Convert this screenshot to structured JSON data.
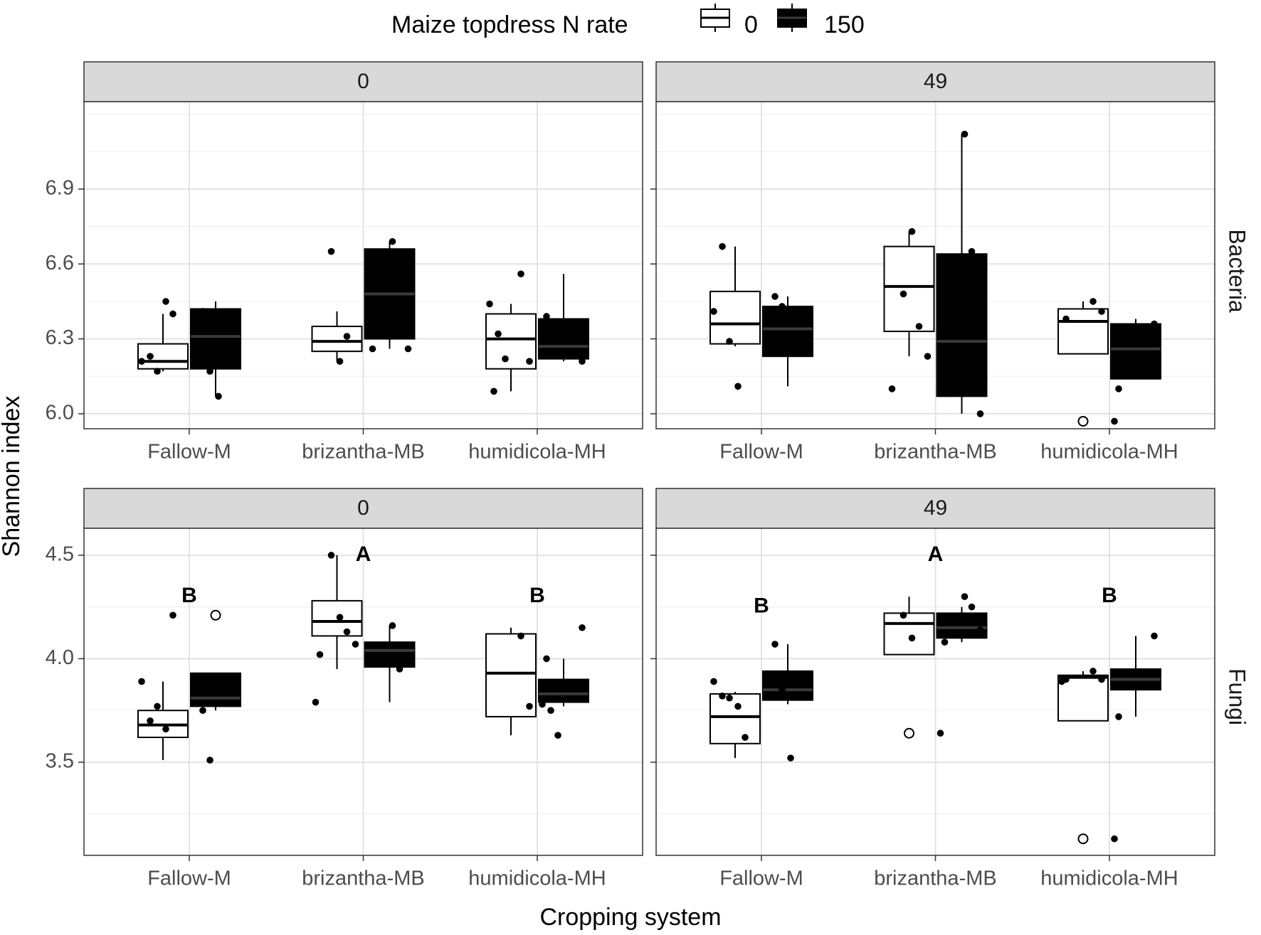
{
  "chart_data": {
    "type": "boxplot",
    "legend": {
      "title": "Maize topdress N rate",
      "placement": "top",
      "entries": [
        {
          "label": "0",
          "fill": "#ffffff"
        },
        {
          "label": "150",
          "fill": "#000000"
        }
      ]
    },
    "xlabel": "Cropping system",
    "ylabel": "Shannon index",
    "categories": [
      "Fallow-M",
      "brizantha-MB",
      "humidicola-MH"
    ],
    "column_strips": [
      "0",
      "0",
      "49",
      "49"
    ],
    "colors": {
      "strip_fill": "#d9d9d9",
      "grid": "#ebebeb",
      "box_0": "#ffffff",
      "box_150": "#000000",
      "median_150": "#3a3a3a"
    },
    "panels": [
      {
        "row": "Bacteria",
        "strip": "0",
        "col": 0,
        "rowIndex": 0,
        "ylim": [
          5.94,
          7.25
        ],
        "yticks": [
          6.0,
          6.3,
          6.6,
          6.9
        ],
        "yticklabels": [
          "6.0",
          "6.3",
          "6.6",
          "6.9"
        ],
        "letters": [],
        "boxes": [
          {
            "category": "Fallow-M",
            "n_rate": "0",
            "q1": 6.18,
            "median": 6.21,
            "q3": 6.28,
            "lower": 6.17,
            "upper": 6.4,
            "points": [
              6.21,
              6.23,
              6.17,
              6.45,
              6.4
            ],
            "outliers": []
          },
          {
            "category": "Fallow-M",
            "n_rate": "150",
            "q1": 6.18,
            "median": 6.31,
            "q3": 6.42,
            "lower": 6.07,
            "upper": 6.45,
            "points": [
              6.41,
              6.17,
              6.07
            ],
            "outliers": []
          },
          {
            "category": "brizantha-MB",
            "n_rate": "0",
            "q1": 6.25,
            "median": 6.29,
            "q3": 6.35,
            "lower": 6.21,
            "upper": 6.41,
            "points": [
              6.65,
              6.21,
              6.31
            ],
            "outliers": []
          },
          {
            "category": "brizantha-MB",
            "n_rate": "150",
            "q1": 6.3,
            "median": 6.48,
            "q3": 6.66,
            "lower": 6.26,
            "upper": 6.69,
            "points": [
              6.69,
              6.41,
              6.26,
              6.26
            ],
            "outliers": []
          },
          {
            "category": "humidicola-MH",
            "n_rate": "0",
            "q1": 6.18,
            "median": 6.3,
            "q3": 6.4,
            "lower": 6.09,
            "upper": 6.44,
            "points": [
              6.56,
              6.21,
              6.09,
              6.44,
              6.32,
              6.22
            ],
            "outliers": []
          },
          {
            "category": "humidicola-MH",
            "n_rate": "150",
            "q1": 6.22,
            "median": 6.27,
            "q3": 6.38,
            "lower": 6.21,
            "upper": 6.56,
            "points": [
              6.21,
              6.39
            ],
            "outliers": []
          }
        ]
      },
      {
        "row": "Bacteria",
        "strip": "49",
        "col": 1,
        "rowIndex": 0,
        "ylim": [
          5.94,
          7.25
        ],
        "yticks": [
          6.0,
          6.3,
          6.6,
          6.9
        ],
        "yticklabels": [
          "6.0",
          "6.3",
          "6.6",
          "6.9"
        ],
        "letters": [],
        "boxes": [
          {
            "category": "Fallow-M",
            "n_rate": "0",
            "q1": 6.28,
            "median": 6.36,
            "q3": 6.49,
            "lower": 6.27,
            "upper": 6.67,
            "points": [
              6.41,
              6.67,
              6.29,
              6.11
            ],
            "outliers": []
          },
          {
            "category": "Fallow-M",
            "n_rate": "150",
            "q1": 6.23,
            "median": 6.34,
            "q3": 6.43,
            "lower": 6.11,
            "upper": 6.47,
            "points": [
              6.47,
              6.43,
              6.27
            ],
            "outliers": []
          },
          {
            "category": "brizantha-MB",
            "n_rate": "0",
            "q1": 6.33,
            "median": 6.51,
            "q3": 6.67,
            "lower": 6.23,
            "upper": 6.73,
            "points": [
              6.48,
              6.73,
              6.35,
              6.23,
              6.1
            ],
            "outliers": []
          },
          {
            "category": "brizantha-MB",
            "n_rate": "150",
            "q1": 6.07,
            "median": 6.29,
            "q3": 6.64,
            "lower": 6.0,
            "upper": 7.12,
            "points": [
              7.12,
              6.65,
              6.0
            ],
            "outliers": []
          },
          {
            "category": "humidicola-MH",
            "n_rate": "0",
            "q1": 6.24,
            "median": 6.37,
            "q3": 6.42,
            "lower": 6.24,
            "upper": 6.45,
            "points": [
              6.45,
              6.41,
              6.38
            ],
            "outliers": [
              5.97
            ]
          },
          {
            "category": "humidicola-MH",
            "n_rate": "150",
            "q1": 6.14,
            "median": 6.26,
            "q3": 6.36,
            "lower": 6.14,
            "upper": 6.38,
            "points": [
              6.36,
              6.1,
              5.97
            ],
            "outliers": []
          }
        ]
      },
      {
        "row": "Fungi",
        "strip": "0",
        "col": 0,
        "rowIndex": 1,
        "ylim": [
          3.05,
          4.63
        ],
        "yticks": [
          3.5,
          4.0,
          4.5
        ],
        "yticklabels": [
          "3.5",
          "4.0",
          "4.5"
        ],
        "letters": [
          {
            "category": "Fallow-M",
            "letter": "B",
            "y": 4.3
          },
          {
            "category": "brizantha-MB",
            "letter": "A",
            "y": 4.5
          },
          {
            "category": "humidicola-MH",
            "letter": "B",
            "y": 4.3
          }
        ],
        "boxes": [
          {
            "category": "Fallow-M",
            "n_rate": "0",
            "q1": 3.62,
            "median": 3.68,
            "q3": 3.75,
            "lower": 3.51,
            "upper": 3.89,
            "points": [
              3.89,
              3.7,
              3.77,
              3.66,
              4.21
            ],
            "outliers": []
          },
          {
            "category": "Fallow-M",
            "n_rate": "150",
            "q1": 3.77,
            "median": 3.81,
            "q3": 3.93,
            "lower": 3.75,
            "upper": 3.93,
            "points": [
              3.75,
              3.51
            ],
            "outliers": [
              4.21
            ]
          },
          {
            "category": "brizantha-MB",
            "n_rate": "0",
            "q1": 4.11,
            "median": 4.18,
            "q3": 4.28,
            "lower": 3.95,
            "upper": 4.5,
            "points": [
              4.5,
              4.2,
              4.13,
              4.07,
              4.02,
              3.79
            ],
            "outliers": []
          },
          {
            "category": "brizantha-MB",
            "n_rate": "150",
            "q1": 3.96,
            "median": 4.04,
            "q3": 4.08,
            "lower": 3.79,
            "upper": 4.16,
            "points": [
              4.16,
              3.95
            ],
            "outliers": []
          },
          {
            "category": "humidicola-MH",
            "n_rate": "0",
            "q1": 3.72,
            "median": 3.93,
            "q3": 4.12,
            "lower": 3.63,
            "upper": 4.15,
            "points": [
              4.11,
              3.77
            ],
            "outliers": []
          },
          {
            "category": "humidicola-MH",
            "n_rate": "150",
            "q1": 3.79,
            "median": 3.83,
            "q3": 3.9,
            "lower": 3.77,
            "upper": 4.0,
            "points": [
              4.15,
              4.0,
              3.78,
              3.75,
              3.63
            ],
            "outliers": []
          }
        ]
      },
      {
        "row": "Fungi",
        "strip": "49",
        "col": 1,
        "rowIndex": 1,
        "ylim": [
          3.05,
          4.63
        ],
        "yticks": [
          3.5,
          4.0,
          4.5
        ],
        "yticklabels": [
          "3.5",
          "4.0",
          "4.5"
        ],
        "letters": [
          {
            "category": "Fallow-M",
            "letter": "B",
            "y": 4.25
          },
          {
            "category": "brizantha-MB",
            "letter": "A",
            "y": 4.5
          },
          {
            "category": "humidicola-MH",
            "letter": "B",
            "y": 4.3
          }
        ],
        "boxes": [
          {
            "category": "Fallow-M",
            "n_rate": "0",
            "q1": 3.59,
            "median": 3.72,
            "q3": 3.83,
            "lower": 3.52,
            "upper": 3.84,
            "points": [
              3.89,
              3.82,
              3.81,
              3.77,
              3.62
            ],
            "outliers": []
          },
          {
            "category": "Fallow-M",
            "n_rate": "150",
            "q1": 3.8,
            "median": 3.85,
            "q3": 3.94,
            "lower": 3.78,
            "upper": 4.07,
            "points": [
              4.07,
              3.85,
              3.52
            ],
            "outliers": []
          },
          {
            "category": "brizantha-MB",
            "n_rate": "0",
            "q1": 4.02,
            "median": 4.17,
            "q3": 4.22,
            "lower": 4.02,
            "upper": 4.3,
            "points": [
              4.21,
              4.1
            ],
            "outliers": [
              3.64
            ]
          },
          {
            "category": "brizantha-MB",
            "n_rate": "150",
            "q1": 4.1,
            "median": 4.15,
            "q3": 4.22,
            "lower": 4.08,
            "upper": 4.25,
            "points": [
              4.3,
              4.25,
              4.14,
              4.08,
              3.64
            ],
            "outliers": []
          },
          {
            "category": "humidicola-MH",
            "n_rate": "0",
            "q1": 3.7,
            "median": 3.91,
            "q3": 3.92,
            "lower": 3.7,
            "upper": 3.94,
            "points": [
              3.94,
              3.9,
              3.9,
              3.89
            ],
            "outliers": [
              3.13
            ]
          },
          {
            "category": "humidicola-MH",
            "n_rate": "150",
            "q1": 3.85,
            "median": 3.9,
            "q3": 3.95,
            "lower": 3.72,
            "upper": 4.11,
            "points": [
              4.11,
              3.72,
              3.13
            ],
            "outliers": []
          }
        ]
      }
    ],
    "row_strips": [
      "Bacteria",
      "Fungi"
    ]
  }
}
